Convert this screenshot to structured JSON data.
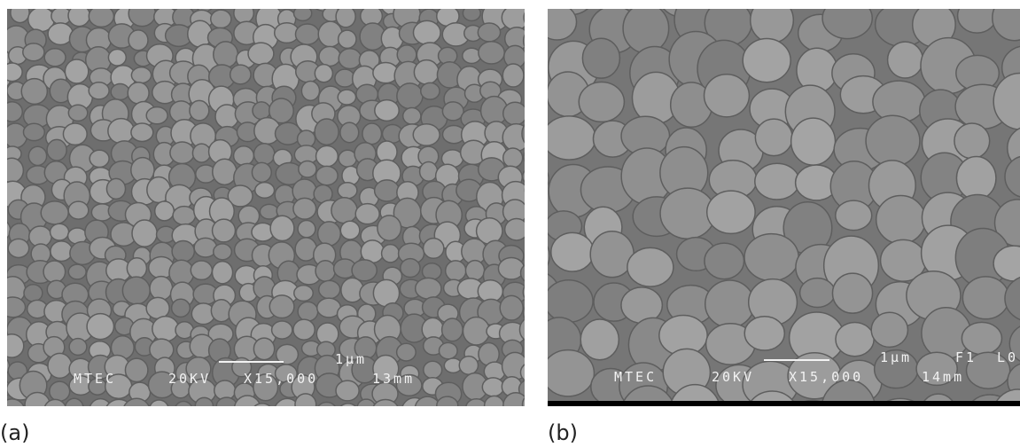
{
  "panels": [
    {
      "label": "(a)",
      "scale_label": "1µm",
      "info": [
        "MTEC",
        "20KV",
        "X15,000",
        "13mm"
      ]
    },
    {
      "label": "(b)",
      "scale_label": "1µm",
      "info": [
        "MTEC",
        "20KV",
        "X15,000",
        "14mm"
      ],
      "extra": [
        "F1",
        "L0"
      ]
    }
  ]
}
